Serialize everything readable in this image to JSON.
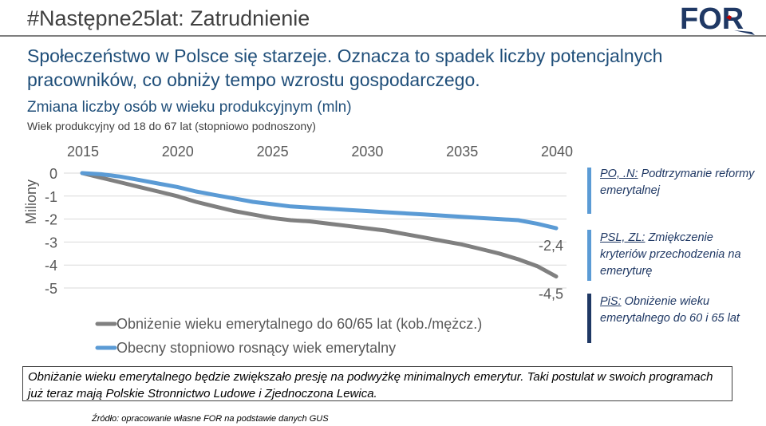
{
  "slide": {
    "title": "#Następne25lat: Zatrudnienie",
    "headline": "Społeczeństwo w Polsce się starzeje. Oznacza to spadek liczby potencjalnych pracowników, co obniży tempo wzrostu gospodarczego."
  },
  "logo": {
    "text": "FOR",
    "color": "#1f3864",
    "accent": "#c00000"
  },
  "chart_data": {
    "type": "line",
    "title": "Zmiana liczby osób w wieku produkcyjnym (mln)",
    "subtitle": "Wiek produkcyjny od 18 do 67 lat (stopniowo podnoszony)",
    "ylabel": "Miliony",
    "xlim": [
      2015,
      2040
    ],
    "ylim": [
      -5,
      0
    ],
    "x_ticks": [
      2015,
      2020,
      2025,
      2030,
      2035,
      2040
    ],
    "y_ticks": [
      0,
      -1,
      -2,
      -3,
      -4,
      -5
    ],
    "x_tick_labels": [
      "2015",
      "2020",
      "2025",
      "2030",
      "2035",
      "2040"
    ],
    "y_tick_labels": [
      "0",
      "-1",
      "-2",
      "-3",
      "-4",
      "-5"
    ],
    "x_axis_position": "top",
    "grid": true,
    "legend": "bottom",
    "series": [
      {
        "name": "Obniżenie wieku emerytalnego do 60/65 lat (kob./mężcz.)",
        "color": "#808080",
        "end_label": "-4,5",
        "x": [
          2015,
          2016,
          2017,
          2018,
          2019,
          2020,
          2021,
          2022,
          2023,
          2024,
          2025,
          2026,
          2027,
          2028,
          2029,
          2030,
          2031,
          2032,
          2033,
          2034,
          2035,
          2036,
          2037,
          2038,
          2039,
          2040
        ],
        "y": [
          0,
          -0.2,
          -0.4,
          -0.6,
          -0.8,
          -1.0,
          -1.25,
          -1.45,
          -1.65,
          -1.8,
          -1.95,
          -2.05,
          -2.1,
          -2.2,
          -2.3,
          -2.4,
          -2.5,
          -2.65,
          -2.8,
          -2.95,
          -3.1,
          -3.3,
          -3.5,
          -3.75,
          -4.05,
          -4.5
        ]
      },
      {
        "name": "Obecny stopniowo rosnący wiek emerytalny",
        "color": "#5b9bd5",
        "end_label": "-2,4",
        "x": [
          2015,
          2016,
          2017,
          2018,
          2019,
          2020,
          2021,
          2022,
          2023,
          2024,
          2025,
          2026,
          2027,
          2028,
          2029,
          2030,
          2031,
          2032,
          2033,
          2034,
          2035,
          2036,
          2037,
          2038,
          2039,
          2040
        ],
        "y": [
          0,
          -0.05,
          -0.15,
          -0.3,
          -0.45,
          -0.6,
          -0.8,
          -0.95,
          -1.1,
          -1.25,
          -1.35,
          -1.45,
          -1.5,
          -1.55,
          -1.6,
          -1.65,
          -1.7,
          -1.75,
          -1.8,
          -1.85,
          -1.9,
          -1.95,
          -2.0,
          -2.05,
          -2.2,
          -2.4
        ]
      }
    ]
  },
  "notes": [
    {
      "head": "PO, .N:",
      "text": " Podtrzymanie reformy emerytalnej",
      "color": "#5b9bd5"
    },
    {
      "head": "PSL, ZL:",
      "text": " Zmiękczenie kryteriów przechodzenia na emeryturę",
      "color": "#5b9bd5"
    },
    {
      "head": "PiS:",
      "text": " Obniżenie wieku emerytalnego do 60 i 65 lat",
      "color": "#1f3864"
    }
  ],
  "footer": {
    "text": "Obniżanie wieku emerytalnego będzie zwiększało presję na podwyżkę minimalnych emerytur. Taki postulat w swoich programach już teraz mają Polskie Stronnictwo Ludowe i Zjednoczona Lewica.",
    "source": "Źródło: opracowanie własne FOR na podstawie danych GUS"
  }
}
